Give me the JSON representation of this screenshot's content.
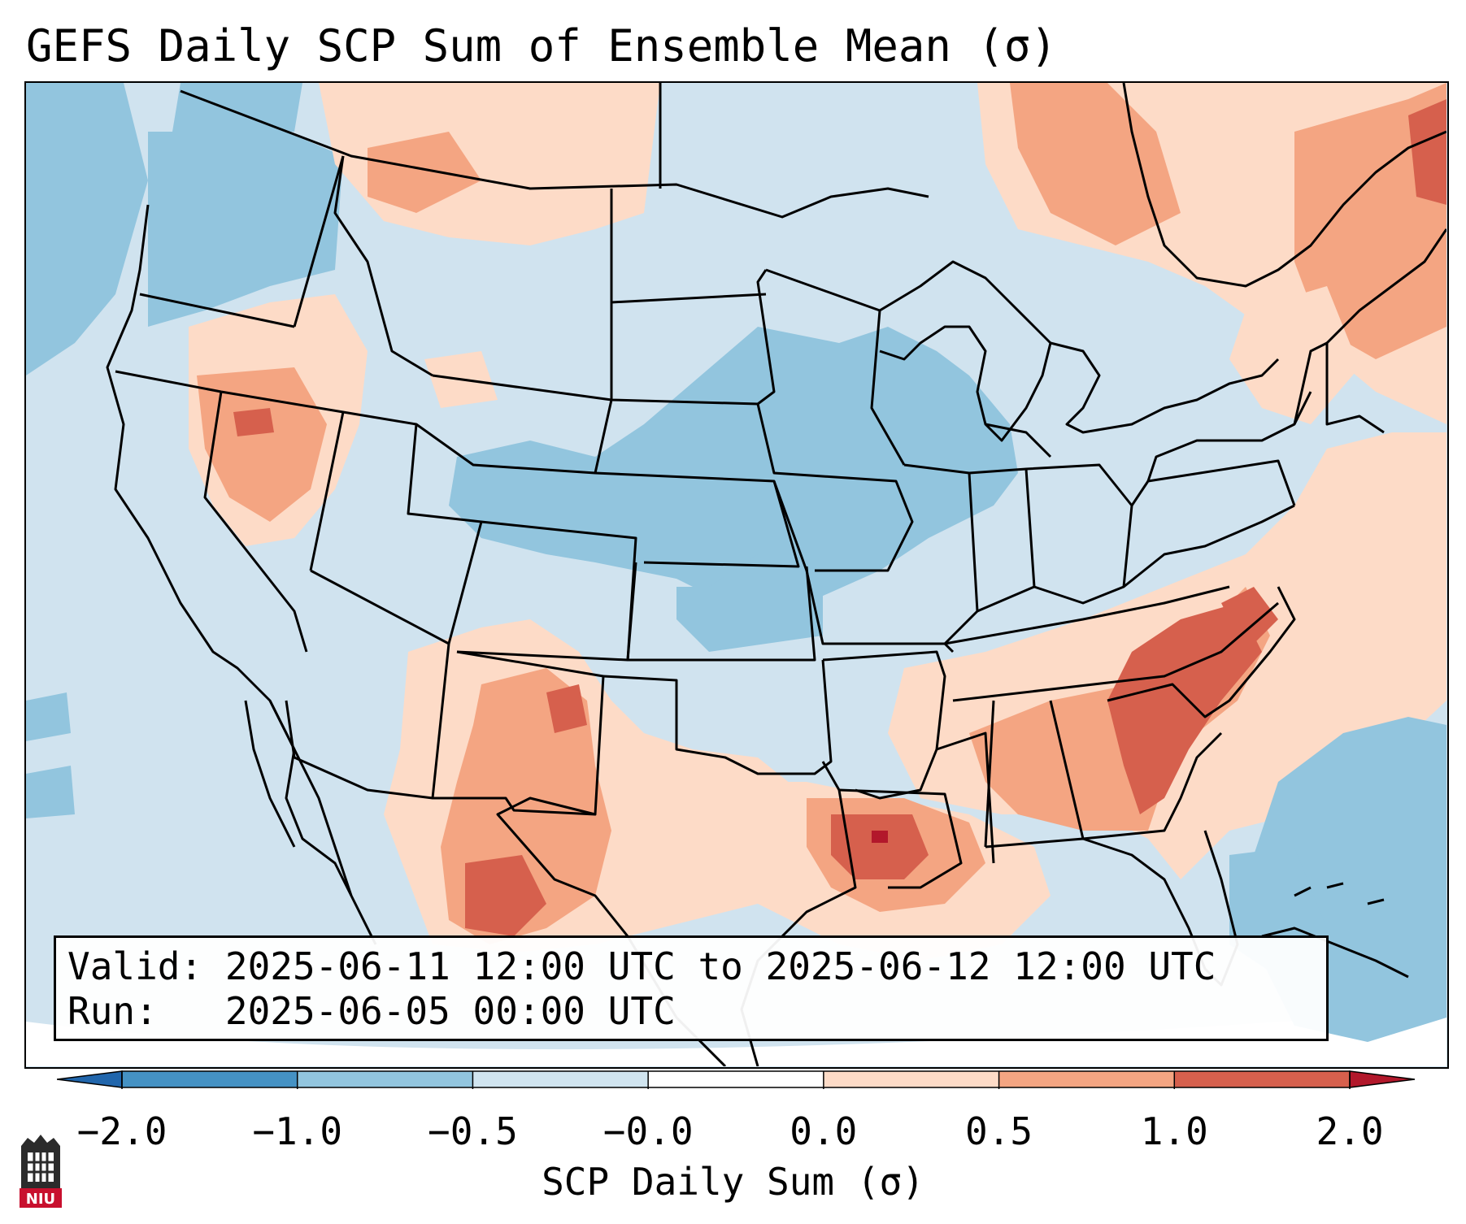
{
  "title": "GEFS Daily SCP Sum of Ensemble Mean (σ)",
  "info": {
    "valid_label": "Valid:",
    "valid_value": "2025-06-11 12:00 UTC to 2025-06-12 12:00 UTC",
    "run_label": "Run:",
    "run_value": "2025-06-05 00:00 UTC"
  },
  "colorbar": {
    "label": "SCP Daily Sum (σ)",
    "tick_labels": [
      "−2.0",
      "−1.0",
      "−0.5",
      "−0.0",
      "0.0",
      "0.5",
      "1.0",
      "2.0"
    ],
    "colors": [
      "#4592c4",
      "#92c5de",
      "#d1e5f0",
      "#ffffff",
      "#fddbc7",
      "#f4a582",
      "#d6604d",
      "#b2182b"
    ],
    "extend": "both"
  },
  "map": {
    "region": "Contiguous United States",
    "field": "SCP daily sum anomaly",
    "background_class": "-0.5 to -0.0"
  },
  "logo": {
    "text": "NIU",
    "icon": "niu-university-seal-icon"
  }
}
